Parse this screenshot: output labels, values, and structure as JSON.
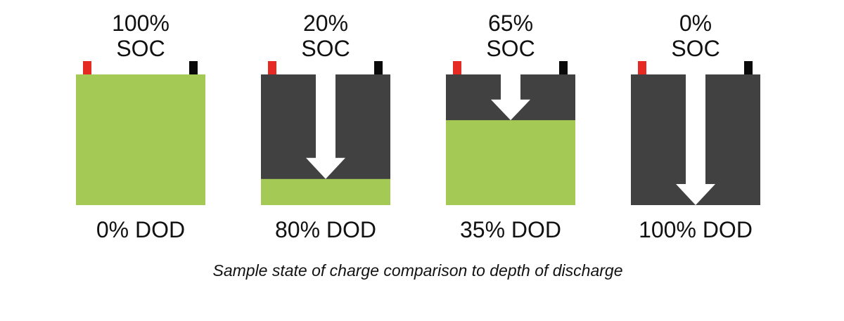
{
  "colors": {
    "charge": "#a5c955",
    "empty": "#414141",
    "positive_terminal": "#e52a24",
    "negative_terminal": "#0a0a0a",
    "arrow": "#ffffff"
  },
  "batteries": [
    {
      "soc_value": "100%",
      "soc_unit": "SOC",
      "dod_label": "0% DOD",
      "charge_fraction": 1.0
    },
    {
      "soc_value": "20%",
      "soc_unit": "SOC",
      "dod_label": "80% DOD",
      "charge_fraction": 0.2
    },
    {
      "soc_value": "65%",
      "soc_unit": "SOC",
      "dod_label": "35% DOD",
      "charge_fraction": 0.65
    },
    {
      "soc_value": "0%",
      "soc_unit": "SOC",
      "dod_label": "100% DOD",
      "charge_fraction": 0.0
    }
  ],
  "caption": "Sample state of charge comparison to depth of discharge"
}
